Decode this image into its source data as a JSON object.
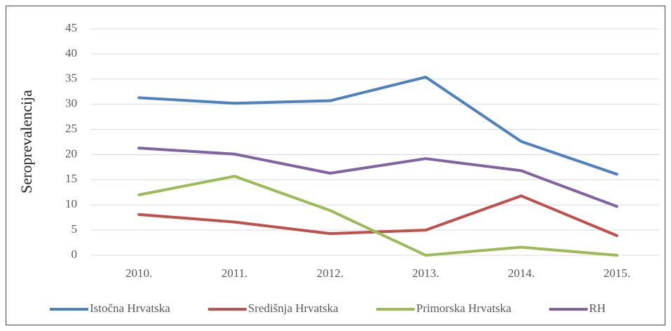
{
  "chart_data": {
    "type": "line",
    "categories": [
      "2010.",
      "2011.",
      "2012.",
      "2013.",
      "2014.",
      "2015."
    ],
    "y_label": "Seroprevalencija",
    "series": [
      {
        "name": "Istočna Hrvatska",
        "color": "#4f81bd",
        "values": [
          31.3,
          30.2,
          30.7,
          35.4,
          22.6,
          16.1
        ]
      },
      {
        "name": "Središnja Hrvatska",
        "color": "#c0504d",
        "values": [
          8.1,
          6.6,
          4.3,
          5.0,
          11.8,
          3.9
        ]
      },
      {
        "name": "Primorska Hrvatska",
        "color": "#9bbb59",
        "values": [
          12.0,
          15.7,
          8.9,
          0,
          1.6,
          0
        ]
      },
      {
        "name": "RH",
        "color": "#8064a2",
        "values": [
          21.3,
          20.1,
          16.3,
          19.2,
          16.8,
          9.7
        ]
      }
    ],
    "ylim": [
      0,
      45
    ],
    "yticks": [
      0,
      5,
      10,
      15,
      20,
      25,
      30,
      35,
      40,
      45
    ],
    "grid": true,
    "legend": "bottom"
  }
}
